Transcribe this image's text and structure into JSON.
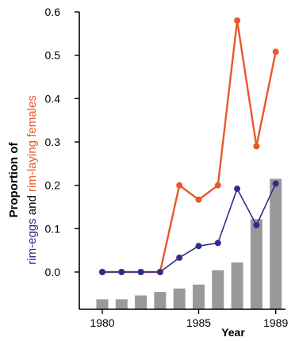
{
  "chart_data": {
    "type": "bar+line",
    "xlabel": "Year",
    "ylabel": {
      "line1": "Proportion of",
      "line2_part1": "rim-eggs",
      "line2_and": " and ",
      "line2_part2": "rim-laying females"
    },
    "ylim": [
      -0.07,
      0.6
    ],
    "yticks": [
      0.0,
      0.1,
      0.2,
      0.3,
      0.4,
      0.5,
      0.6
    ],
    "ytick_labels": [
      "0.0",
      "0.1",
      "0.2",
      "0.3",
      "0.4",
      "0.5",
      "0.6"
    ],
    "xticks": [
      1980,
      1985,
      1989
    ],
    "xtick_labels": [
      "1980",
      "1985",
      "1989"
    ],
    "years": [
      1980,
      1981,
      1982,
      1983,
      1984,
      1985,
      1986,
      1987,
      1988,
      1989
    ],
    "bars": {
      "color": "#999999",
      "values": [
        -0.063,
        -0.063,
        -0.054,
        -0.046,
        -0.038,
        -0.029,
        0.004,
        0.022,
        0.122,
        0.215
      ]
    },
    "series": [
      {
        "key": "rim_laying_females",
        "color": "#e8582a",
        "values": [
          0.0,
          0.0,
          0.0,
          0.0,
          0.2,
          0.167,
          0.2,
          0.58,
          0.29,
          0.508
        ]
      },
      {
        "key": "rim_eggs",
        "color": "#2e2e8f",
        "values": [
          0.0,
          0.0,
          0.0,
          0.0,
          0.033,
          0.06,
          0.067,
          0.192,
          0.108,
          0.204
        ]
      }
    ]
  }
}
